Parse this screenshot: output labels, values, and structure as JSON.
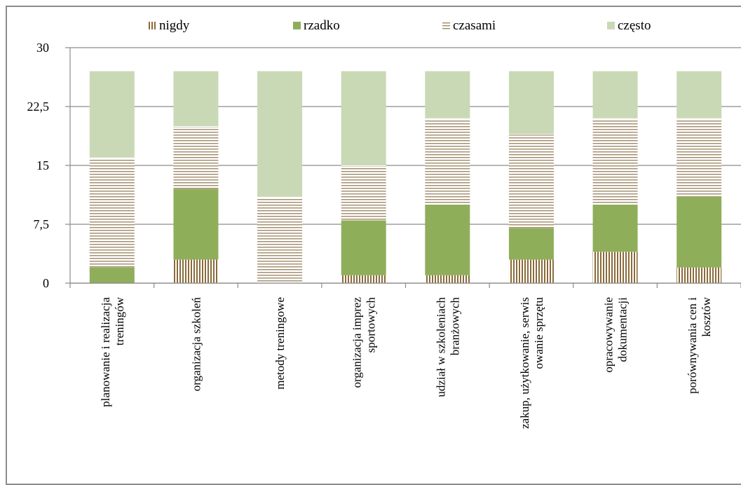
{
  "chart_data": {
    "type": "bar",
    "stacked": true,
    "categories": [
      [
        "planowanie i realizacja",
        "treningów"
      ],
      [
        "organizacja szkoleń"
      ],
      [
        "metody treningowe"
      ],
      [
        "organizacja   imprez",
        "sportowych"
      ],
      [
        "udział w szkoleniach",
        "branżowych"
      ],
      [
        "zakup, użytkowanie,  serwis",
        "owanie sprzętu"
      ],
      [
        "opracowywanie",
        "dokumentacji"
      ],
      [
        "porównywania   cen i",
        "kosztów"
      ]
    ],
    "series": [
      {
        "name": "nigdy",
        "values": [
          0,
          3,
          0,
          1,
          1,
          3,
          4,
          2
        ],
        "color": "#8b6b3a",
        "pattern": "vertical"
      },
      {
        "name": "rzadko",
        "values": [
          2,
          9,
          0,
          7,
          9,
          4,
          6,
          9
        ],
        "color": "#8fae5a",
        "pattern": "solid"
      },
      {
        "name": "czasami",
        "values": [
          14,
          8,
          11,
          7,
          11,
          12,
          11,
          10
        ],
        "color": "#a08a6a",
        "pattern": "horizontal"
      },
      {
        "name": "często",
        "values": [
          11,
          7,
          16,
          12,
          6,
          8,
          6,
          6
        ],
        "color": "#c9d9b5",
        "pattern": "solid"
      }
    ],
    "yticks": [
      "0",
      "7,5",
      "15",
      "22,5",
      "30"
    ],
    "ylim": [
      0,
      30
    ],
    "grid": true,
    "legend_position": "top",
    "title": "",
    "xlabel": "",
    "ylabel": ""
  }
}
